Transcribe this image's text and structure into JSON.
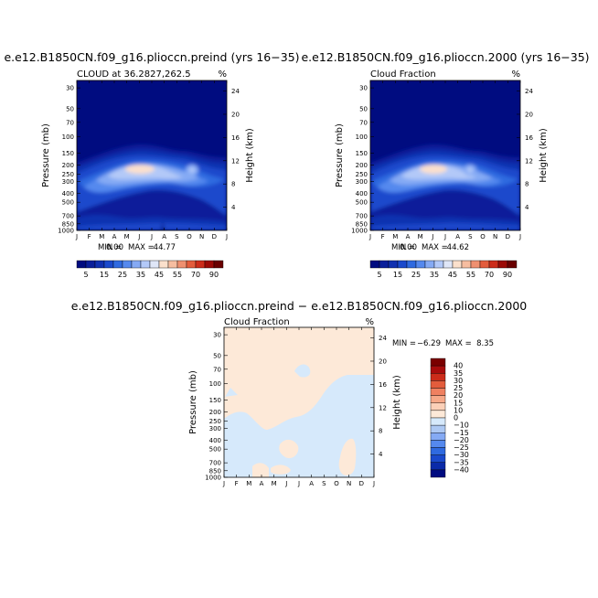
{
  "figure": {
    "panel_a_title": "e.e12.B1850CN.f09_g16.plioccn.preind (yrs 16−35)",
    "panel_a_subtitle": "CLOUD at 36.2827,262.5",
    "panel_b_title": "e.e12.B1850CN.f09_g16.plioccn.2000 (yrs 16−35)",
    "panel_b_subtitle": "Cloud Fraction",
    "panel_c_title": "e.e12.B1850CN.f09_g16.plioccn.preind − e.e12.B1850CN.f09_g16.plioccn.2000",
    "panel_c_subtitle": "Cloud Fraction",
    "units_label": "%"
  },
  "chart_data": [
    {
      "type": "heatmap",
      "id": "panel_a",
      "title": "e.e12.B1850CN.f09_g16.plioccn.preind (yrs 16−35)",
      "subtitle": "CLOUD at 36.2827,262.5",
      "xlabel": "",
      "ylabel": "Pressure (mb)",
      "ylabel_right": "Height (km)",
      "x_ticks": [
        "J",
        "F",
        "M",
        "A",
        "M",
        "J",
        "J",
        "A",
        "S",
        "O",
        "N",
        "D",
        "J"
      ],
      "y_ticks": [
        30,
        50,
        70,
        100,
        150,
        200,
        250,
        300,
        400,
        500,
        700,
        850,
        1000
      ],
      "y_right_ticks": [
        4,
        8,
        12,
        16,
        20,
        24
      ],
      "y_scale": "log",
      "ylim": [
        1000,
        25
      ],
      "stats": {
        "min_label": "MIN =",
        "min": "0.00",
        "max_label": "MAX =",
        "max": "44.77"
      },
      "colorbar": {
        "orientation": "horizontal",
        "levels": [
          5,
          10,
          15,
          20,
          25,
          30,
          35,
          40,
          45,
          50,
          55,
          60,
          70,
          80,
          90
        ],
        "labels": [
          "5",
          "15",
          "25",
          "35",
          "45",
          "55",
          "70",
          "90"
        ]
      }
    },
    {
      "type": "heatmap",
      "id": "panel_b",
      "title": "e.e12.B1850CN.f09_g16.plioccn.2000 (yrs 16−35)",
      "subtitle": "Cloud Fraction",
      "xlabel": "",
      "ylabel": "Pressure (mb)",
      "ylabel_right": "Height (km)",
      "x_ticks": [
        "J",
        "F",
        "M",
        "A",
        "M",
        "J",
        "J",
        "A",
        "S",
        "O",
        "N",
        "D",
        "J"
      ],
      "y_ticks": [
        30,
        50,
        70,
        100,
        150,
        200,
        250,
        300,
        400,
        500,
        700,
        850,
        1000
      ],
      "y_right_ticks": [
        4,
        8,
        12,
        16,
        20,
        24
      ],
      "y_scale": "log",
      "ylim": [
        1000,
        25
      ],
      "stats": {
        "min_label": "MIN =",
        "min": "0.00",
        "max_label": "MAX =",
        "max": "44.62"
      },
      "colorbar": {
        "orientation": "horizontal",
        "levels": [
          5,
          10,
          15,
          20,
          25,
          30,
          35,
          40,
          45,
          50,
          55,
          60,
          70,
          80,
          90
        ],
        "labels": [
          "5",
          "15",
          "25",
          "35",
          "45",
          "55",
          "70",
          "90"
        ]
      }
    },
    {
      "type": "heatmap",
      "id": "panel_c",
      "title": "e.e12.B1850CN.f09_g16.plioccn.preind − e.e12.B1850CN.f09_g16.plioccn.2000",
      "subtitle": "Cloud Fraction",
      "xlabel": "",
      "ylabel": "Pressure (mb)",
      "ylabel_right": "Height (km)",
      "x_ticks": [
        "J",
        "F",
        "M",
        "A",
        "M",
        "J",
        "J",
        "A",
        "S",
        "O",
        "N",
        "D",
        "J"
      ],
      "y_ticks": [
        30,
        50,
        70,
        100,
        150,
        200,
        250,
        300,
        400,
        500,
        700,
        850,
        1000
      ],
      "y_right_ticks": [
        4,
        8,
        12,
        16,
        20,
        24
      ],
      "y_scale": "log",
      "ylim": [
        1000,
        25
      ],
      "stats": {
        "min_label": "MIN =",
        "min": "−6.29",
        "max_label": "MAX =",
        "max": "8.35"
      },
      "colorbar": {
        "orientation": "vertical",
        "levels": [
          40,
          35,
          30,
          25,
          20,
          15,
          10,
          0,
          -10,
          -15,
          -20,
          -25,
          -30,
          -35,
          -40
        ],
        "labels": [
          "40",
          "35",
          "30",
          "25",
          "20",
          "15",
          "10",
          "0",
          "−10",
          "−15",
          "−20",
          "−25",
          "−30",
          "−35",
          "−40"
        ]
      }
    }
  ],
  "colors": {
    "sequential": [
      "#000c80",
      "#0a1f9a",
      "#1030b0",
      "#1a49cc",
      "#2f6ae0",
      "#5589ee",
      "#85aaf4",
      "#b3c9f8",
      "#dfe6f7",
      "#fbe0cc",
      "#f6bda0",
      "#ef9070",
      "#e35c3c",
      "#cc2c1a",
      "#9c0a06",
      "#6a0000"
    ],
    "diverging": [
      "#7a0000",
      "#a80c0c",
      "#cc2c1a",
      "#e35c3c",
      "#ef8060",
      "#f6a888",
      "#fbd0b8",
      "#fde9d8",
      "#d6e9fb",
      "#adc8f3",
      "#85aaf4",
      "#5589ee",
      "#2f6ae0",
      "#1a49cc",
      "#0a2aa8",
      "#000c80"
    ]
  }
}
